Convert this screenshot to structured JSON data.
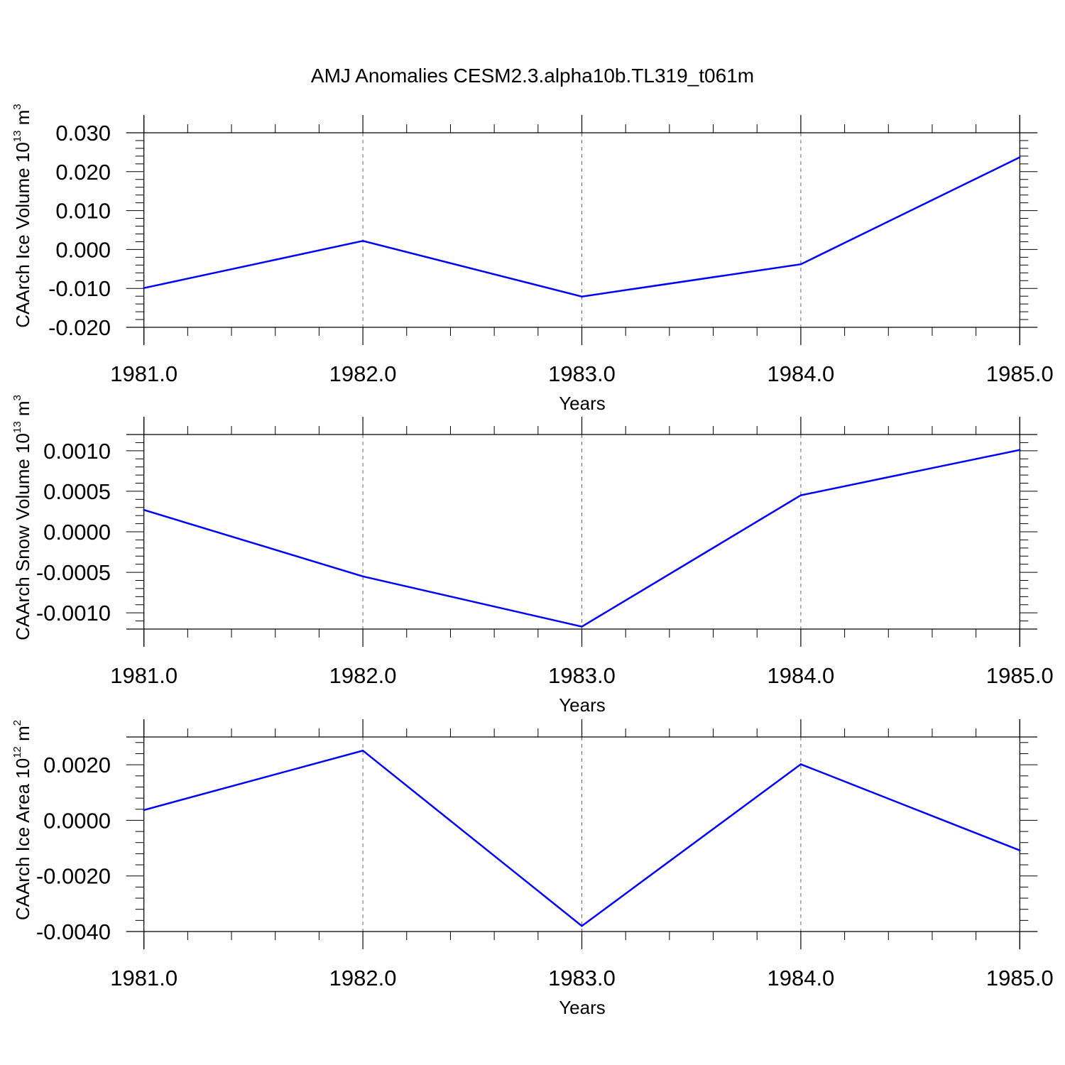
{
  "title": "AMJ Anomalies CESM2.3.alpha10b.TL319_t061m",
  "colors": {
    "line": "#0000ff",
    "axis": "#000000",
    "grid": "#666666",
    "background": "#ffffff"
  },
  "chart_data": [
    {
      "type": "line",
      "ylabel": {
        "text": "CAArch Ice Volume 10",
        "exponent": "13",
        "unit": " m",
        "unit_exponent": "3"
      },
      "xlabel": "Years",
      "x": [
        1981.0,
        1982.0,
        1983.0,
        1984.0,
        1985.0
      ],
      "y": [
        -0.0099,
        0.0022,
        -0.0121,
        -0.0038,
        0.0237
      ],
      "xlim": [
        1980.92,
        1985.08
      ],
      "ylim": [
        -0.02,
        0.03
      ],
      "xticks": [
        "1981.0",
        "1982.0",
        "1983.0",
        "1984.0",
        "1985.0"
      ],
      "yticks": [
        {
          "value": 0.03,
          "label": "0.030"
        },
        {
          "value": 0.02,
          "label": "0.020"
        },
        {
          "value": 0.01,
          "label": "0.010"
        },
        {
          "value": 0.0,
          "label": "0.000"
        },
        {
          "value": -0.01,
          "label": "-0.010"
        },
        {
          "value": -0.02,
          "label": "-0.020"
        }
      ],
      "grid": "vertical dashed at major x ticks"
    },
    {
      "type": "line",
      "ylabel": {
        "text": "CAArch Snow Volume 10",
        "exponent": "13",
        "unit": " m",
        "unit_exponent": "3"
      },
      "xlabel": "Years",
      "x": [
        1981.0,
        1982.0,
        1983.0,
        1984.0,
        1985.0
      ],
      "y": [
        0.00027,
        -0.00055,
        -0.00117,
        0.00045,
        0.00101
      ],
      "xlim": [
        1980.92,
        1985.08
      ],
      "ylim": [
        -0.0012,
        0.0012
      ],
      "xticks": [
        "1981.0",
        "1982.0",
        "1983.0",
        "1984.0",
        "1985.0"
      ],
      "yticks": [
        {
          "value": 0.001,
          "label": "0.0010"
        },
        {
          "value": 0.0005,
          "label": "0.0005"
        },
        {
          "value": 0.0,
          "label": "0.0000"
        },
        {
          "value": -0.0005,
          "label": "-0.0005"
        },
        {
          "value": -0.001,
          "label": "-0.0010"
        }
      ],
      "grid": "vertical dashed at major x ticks"
    },
    {
      "type": "line",
      "ylabel": {
        "text": "CAArch Ice Area 10",
        "exponent": "12",
        "unit": " m",
        "unit_exponent": "2"
      },
      "xlabel": "Years",
      "x": [
        1981.0,
        1982.0,
        1983.0,
        1984.0,
        1985.0
      ],
      "y": [
        0.00037,
        0.00251,
        -0.0038,
        0.00202,
        -0.00108
      ],
      "xlim": [
        1980.92,
        1985.08
      ],
      "ylim": [
        -0.004,
        0.003
      ],
      "xticks": [
        "1981.0",
        "1982.0",
        "1983.0",
        "1984.0",
        "1985.0"
      ],
      "yticks": [
        {
          "value": 0.002,
          "label": "0.0020"
        },
        {
          "value": 0.0,
          "label": "0.0000"
        },
        {
          "value": -0.002,
          "label": "-0.0020"
        },
        {
          "value": -0.004,
          "label": "-0.0040"
        }
      ],
      "grid": "vertical dashed at major x ticks"
    }
  ]
}
